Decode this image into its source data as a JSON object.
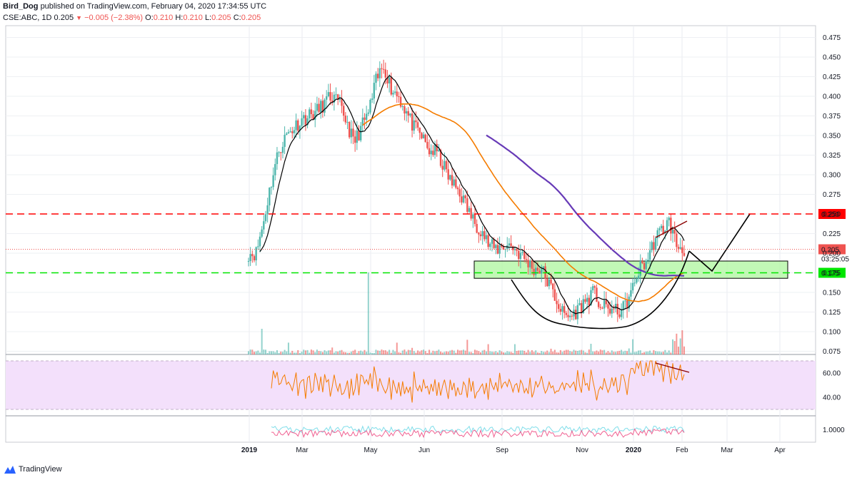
{
  "header": {
    "author": "Bird_Dog",
    "published_text": "published on TradingView.com, February 04, 2020 17:34:55 UTC",
    "symbol": "CSE:ABC, 1D",
    "last": "0.205",
    "change": "−0.005 (−2.38%)",
    "o_label": "O:",
    "o_value": "0.210",
    "h_label": "H:",
    "h_value": "0.210",
    "l_label": "L:",
    "l_value": "0.205",
    "c_label": "C:",
    "c_value": "0.205"
  },
  "brand": {
    "name": "TradingView"
  },
  "colors": {
    "up": "#4db6ac",
    "down": "#ef5350",
    "ma_fast": "#000000",
    "ma_mid": "#f57c00",
    "ma_slow": "#673ab7",
    "resistance": "#ff0000",
    "support": "#00e600",
    "zone_fill": "#b7f7a9",
    "rsi_line": "#f57c00",
    "rsi_band": "#f3e0fb",
    "osc_a": "#f06292",
    "osc_b": "#80deea"
  },
  "price_labels": {
    "resistance": "0.250",
    "last": "0.205",
    "countdown": "03:25:05",
    "support": "0.175"
  },
  "chart_data": [
    {
      "type": "candlestick",
      "panel": "price",
      "x_axis_labels": [
        "2019",
        "Mar",
        "May",
        "Jun",
        "Sep",
        "Nov",
        "2020",
        "Feb",
        "Mar",
        "Apr"
      ],
      "y_ticks": [
        "0.475",
        "0.450",
        "0.425",
        "0.400",
        "0.375",
        "0.350",
        "0.325",
        "0.300",
        "0.275",
        "0.250",
        "0.225",
        "0.200",
        "0.175",
        "0.150",
        "0.125",
        "0.100",
        "0.075"
      ],
      "ylim": [
        0.07,
        0.485
      ],
      "horizontal_levels": [
        {
          "name": "resistance",
          "value": 0.25,
          "style": "dashed",
          "color": "#ff0000"
        },
        {
          "name": "support",
          "value": 0.175,
          "style": "dashed",
          "color": "#00e600"
        },
        {
          "name": "last-price",
          "value": 0.205,
          "style": "dotted",
          "color": "#ef5350"
        }
      ],
      "zone": {
        "low": 0.168,
        "high": 0.19
      },
      "close_path": [
        0.2,
        0.2,
        0.24,
        0.29,
        0.33,
        0.35,
        0.36,
        0.37,
        0.375,
        0.38,
        0.39,
        0.4,
        0.39,
        0.37,
        0.34,
        0.36,
        0.38,
        0.42,
        0.44,
        0.41,
        0.4,
        0.38,
        0.36,
        0.35,
        0.33,
        0.33,
        0.31,
        0.29,
        0.28,
        0.26,
        0.24,
        0.23,
        0.21,
        0.205,
        0.21,
        0.21,
        0.2,
        0.19,
        0.18,
        0.18,
        0.16,
        0.14,
        0.12,
        0.12,
        0.13,
        0.14,
        0.15,
        0.13,
        0.13,
        0.125,
        0.13,
        0.15,
        0.18,
        0.19,
        0.215,
        0.23,
        0.24,
        0.21,
        0.205
      ]
    },
    {
      "type": "line",
      "panel": "rsi",
      "y_ticks": [
        "60.00",
        "40.00"
      ],
      "band": [
        30,
        70
      ]
    },
    {
      "type": "line",
      "panel": "oscillator",
      "y_ticks": [
        "1.0000"
      ]
    }
  ]
}
